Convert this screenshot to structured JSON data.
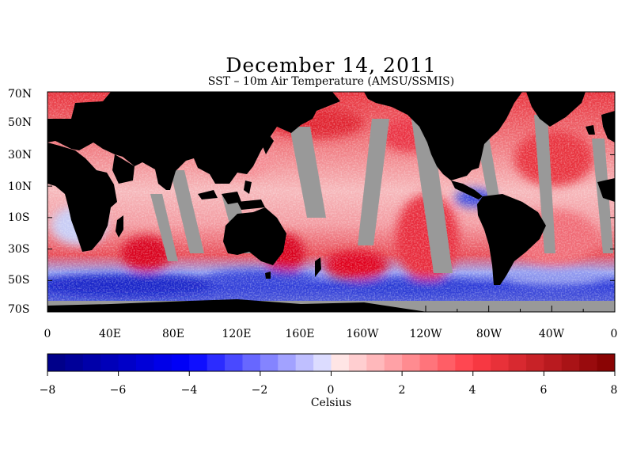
{
  "title": "December 14, 2011",
  "subtitle": "SST – 10m Air Temperature (AMSU/SSMIS)",
  "colors": {
    "land": "#000000",
    "no_data": "#999999",
    "warm_extreme": "#8b0000",
    "cold_extreme": "#00008b"
  },
  "map": {
    "lat_labels": [
      "70N",
      "50N",
      "30N",
      "10N",
      "10S",
      "30S",
      "50S",
      "70S"
    ],
    "lon_labels": [
      "0",
      "40E",
      "80E",
      "120E",
      "160E",
      "160W",
      "120W",
      "80W",
      "40W",
      "0"
    ]
  },
  "colorbar": {
    "min": -8,
    "max": 8,
    "step": 0.5,
    "tick_labels": [
      "−8",
      "−6",
      "−4",
      "−2",
      "0",
      "2",
      "4",
      "6",
      "8"
    ],
    "unit": "Celsius"
  }
}
